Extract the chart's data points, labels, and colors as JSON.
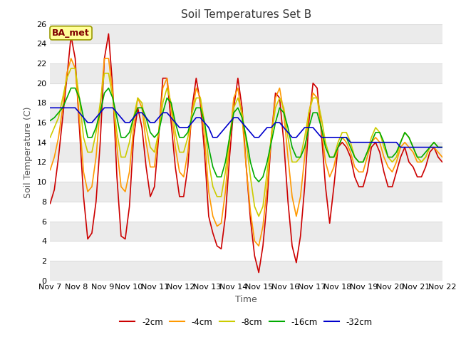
{
  "title": "Soil Temperatures Set B",
  "xlabel": "Time",
  "ylabel": "Soil Temperature (C)",
  "annotation": "BA_met",
  "ylim": [
    0,
    26
  ],
  "yticks": [
    0,
    2,
    4,
    6,
    8,
    10,
    12,
    14,
    16,
    18,
    20,
    22,
    24,
    26
  ],
  "xtick_labels": [
    "Nov 7",
    "Nov 8",
    "Nov 9",
    "Nov 10",
    "Nov 11",
    "Nov 12",
    "Nov 13",
    "Nov 14",
    "Nov 15",
    "Nov 16",
    "Nov 17",
    "Nov 18",
    "Nov 19",
    "Nov 20",
    "Nov 21",
    "Nov 22"
  ],
  "series_colors": {
    "-2cm": "#cc0000",
    "-4cm": "#ff9900",
    "-8cm": "#cccc00",
    "-16cm": "#00aa00",
    "-32cm": "#0000cc"
  },
  "series_linewidth": 1.2,
  "fig_bg_color": "#ffffff",
  "plot_bg_color": "#ffffff",
  "grid_color": "#dddddd",
  "band_color": "#ebebeb",
  "title_fontsize": 11,
  "axis_label_fontsize": 9,
  "tick_fontsize": 8,
  "t_2cm": [
    7.8,
    9.2,
    12.5,
    16.5,
    20.5,
    24.8,
    22.5,
    15.5,
    8.5,
    4.2,
    4.8,
    8.0,
    14.0,
    22.5,
    25.0,
    19.5,
    10.5,
    4.5,
    4.2,
    7.5,
    14.5,
    17.5,
    15.5,
    11.5,
    8.5,
    9.5,
    14.5,
    20.5,
    20.5,
    16.0,
    11.5,
    8.5,
    8.5,
    11.5,
    17.5,
    20.5,
    18.0,
    13.0,
    6.5,
    4.8,
    3.5,
    3.2,
    6.5,
    12.5,
    17.5,
    20.5,
    17.5,
    11.5,
    6.2,
    2.5,
    0.8,
    3.5,
    8.0,
    14.5,
    19.0,
    18.5,
    14.0,
    8.0,
    3.5,
    1.8,
    4.5,
    9.5,
    16.0,
    20.0,
    19.5,
    15.0,
    9.5,
    5.8,
    9.5,
    13.5,
    14.0,
    13.5,
    12.5,
    10.5,
    9.5,
    9.5,
    11.0,
    13.5,
    14.0,
    13.0,
    11.0,
    9.5,
    9.5,
    11.0,
    12.5,
    13.5,
    12.0,
    11.5,
    10.5,
    10.5,
    11.5,
    13.0,
    13.5,
    12.5,
    12.0
  ],
  "t_4cm": [
    11.2,
    12.5,
    14.5,
    17.5,
    21.0,
    22.5,
    21.5,
    16.5,
    11.0,
    9.0,
    9.5,
    12.5,
    17.5,
    22.5,
    22.5,
    19.0,
    13.5,
    9.5,
    9.0,
    11.0,
    15.5,
    18.5,
    17.5,
    14.0,
    11.5,
    11.5,
    15.0,
    19.5,
    20.5,
    17.5,
    13.5,
    11.0,
    10.5,
    13.0,
    17.0,
    19.5,
    18.5,
    14.5,
    9.0,
    6.5,
    5.5,
    5.8,
    9.0,
    14.0,
    18.5,
    19.5,
    16.5,
    11.5,
    7.0,
    4.0,
    3.5,
    5.5,
    9.5,
    14.5,
    18.5,
    19.5,
    17.0,
    12.5,
    8.5,
    6.5,
    8.5,
    12.5,
    17.0,
    19.0,
    18.5,
    15.5,
    12.0,
    10.5,
    11.5,
    13.5,
    14.5,
    14.0,
    13.0,
    11.5,
    11.0,
    11.0,
    12.5,
    14.0,
    14.5,
    14.0,
    12.5,
    11.5,
    11.0,
    12.0,
    13.5,
    14.0,
    13.5,
    13.0,
    12.0,
    12.0,
    12.5,
    13.5,
    13.5,
    13.0,
    12.5
  ],
  "t_8cm": [
    14.5,
    15.5,
    16.5,
    18.5,
    20.5,
    21.5,
    21.5,
    18.5,
    14.5,
    13.0,
    13.0,
    15.0,
    18.0,
    21.0,
    21.0,
    18.5,
    15.0,
    12.5,
    12.5,
    14.0,
    16.5,
    18.5,
    18.0,
    15.5,
    13.5,
    13.0,
    15.0,
    18.0,
    19.5,
    18.0,
    15.0,
    13.0,
    13.0,
    14.5,
    17.0,
    18.5,
    18.5,
    16.0,
    12.0,
    9.5,
    8.5,
    8.5,
    11.0,
    14.5,
    17.5,
    18.5,
    17.0,
    14.0,
    10.5,
    7.5,
    6.5,
    7.5,
    11.0,
    14.5,
    17.5,
    18.5,
    17.5,
    14.5,
    12.0,
    12.0,
    12.5,
    14.5,
    17.0,
    18.5,
    18.5,
    16.5,
    14.0,
    12.5,
    12.5,
    14.0,
    15.0,
    15.0,
    14.0,
    12.5,
    12.0,
    12.0,
    13.0,
    14.5,
    15.5,
    15.0,
    13.5,
    12.5,
    12.0,
    12.5,
    14.0,
    15.0,
    14.5,
    13.5,
    12.5,
    12.0,
    12.5,
    13.5,
    14.0,
    13.5,
    13.5
  ],
  "t_16cm": [
    16.2,
    16.5,
    17.0,
    17.5,
    18.5,
    19.5,
    19.5,
    18.5,
    16.5,
    14.5,
    14.5,
    15.5,
    17.0,
    19.0,
    19.5,
    18.5,
    16.5,
    14.5,
    14.5,
    15.0,
    16.5,
    17.5,
    17.5,
    16.5,
    15.0,
    14.5,
    15.0,
    17.0,
    18.5,
    18.0,
    16.0,
    14.5,
    14.5,
    15.0,
    16.5,
    17.5,
    17.5,
    16.0,
    13.5,
    11.5,
    10.5,
    10.5,
    12.0,
    14.5,
    17.0,
    17.5,
    16.5,
    14.5,
    12.0,
    10.5,
    10.0,
    10.5,
    12.0,
    14.0,
    16.0,
    17.5,
    17.0,
    15.5,
    13.5,
    12.5,
    12.5,
    13.5,
    15.5,
    17.0,
    17.0,
    15.5,
    13.5,
    12.5,
    12.5,
    13.5,
    14.5,
    14.5,
    13.5,
    12.5,
    12.0,
    12.0,
    13.0,
    14.0,
    15.0,
    15.0,
    14.0,
    12.5,
    12.5,
    13.0,
    14.0,
    15.0,
    14.5,
    13.5,
    12.5,
    12.5,
    13.0,
    13.5,
    14.0,
    13.5,
    13.5
  ],
  "t_32cm": [
    17.5,
    17.5,
    17.5,
    17.5,
    17.5,
    17.5,
    17.5,
    17.0,
    16.5,
    16.0,
    16.0,
    16.5,
    17.0,
    17.5,
    17.5,
    17.5,
    17.0,
    16.5,
    16.0,
    16.0,
    16.5,
    17.0,
    17.0,
    16.5,
    16.0,
    16.0,
    16.5,
    17.0,
    17.0,
    16.5,
    16.0,
    15.5,
    15.5,
    15.5,
    16.0,
    16.5,
    16.5,
    16.0,
    15.5,
    14.5,
    14.5,
    15.0,
    15.5,
    16.0,
    16.5,
    16.5,
    16.0,
    15.5,
    15.0,
    14.5,
    14.5,
    15.0,
    15.5,
    15.5,
    16.0,
    16.0,
    15.5,
    15.0,
    14.5,
    14.5,
    15.0,
    15.5,
    15.5,
    15.5,
    15.0,
    14.5,
    14.5,
    14.5,
    14.5,
    14.5,
    14.5,
    14.5,
    14.0,
    14.0,
    14.0,
    14.0,
    14.0,
    14.0,
    14.0,
    14.0,
    14.0,
    14.0,
    14.0,
    14.0,
    13.5,
    13.5,
    13.5,
    13.5,
    13.5,
    13.5,
    13.5,
    13.5,
    13.5,
    13.5,
    13.5
  ]
}
